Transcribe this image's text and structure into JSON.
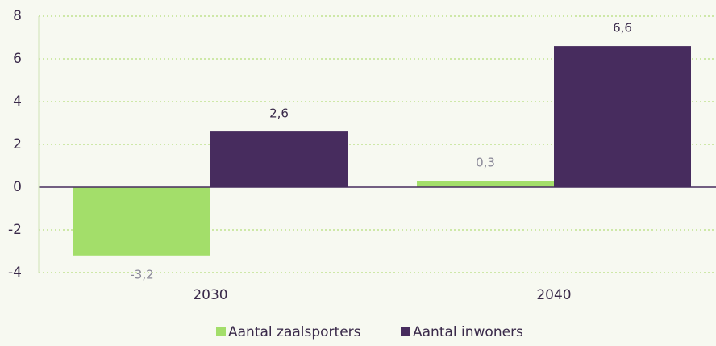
{
  "chart_data": {
    "type": "bar",
    "categories": [
      "2030",
      "2040"
    ],
    "series": [
      {
        "name": "Aantal zaalsporters",
        "color": "#a3de6a",
        "values": [
          -3.2,
          0.3
        ],
        "value_labels": [
          "-3,2",
          "0,3"
        ]
      },
      {
        "name": "Aantal inwoners",
        "color": "#472c5e",
        "values": [
          2.6,
          6.6
        ],
        "value_labels": [
          "2,6",
          "6,6"
        ]
      }
    ],
    "ylim": [
      -4,
      8
    ],
    "yticks": [
      -4,
      -2,
      0,
      2,
      4,
      6,
      8
    ],
    "grid": true,
    "legend": "bottom"
  }
}
